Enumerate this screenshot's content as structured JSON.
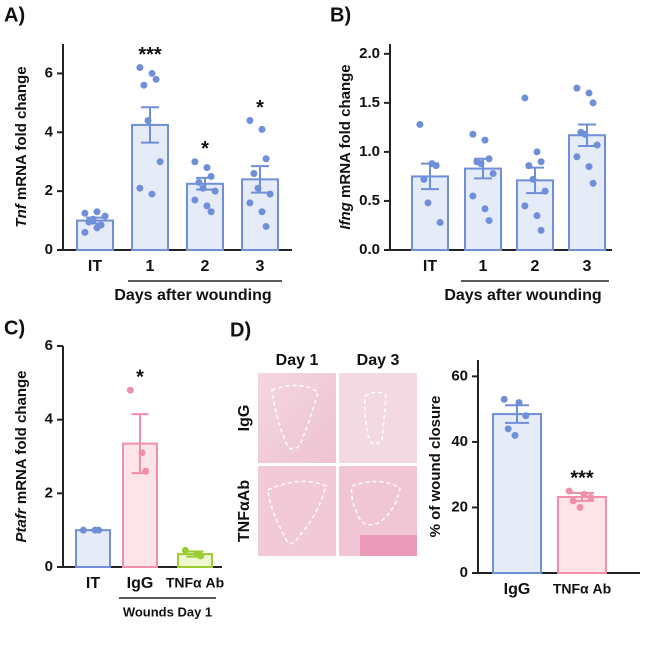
{
  "chart_data": [
    {
      "type": "bar",
      "panel_label": "A)",
      "ylabel_gene": "Tnf",
      "ylabel": "mRNA fold change",
      "categories": [
        "IT",
        "1",
        "2",
        "3"
      ],
      "values": [
        1.0,
        4.25,
        2.25,
        2.4
      ],
      "errors": [
        0.1,
        0.6,
        0.2,
        0.45
      ],
      "points": [
        [
          0.6,
          0.75,
          0.85,
          0.95,
          1.05,
          1.15,
          1.25,
          1.3
        ],
        [
          6.2,
          6.0,
          5.8,
          5.6,
          4.4,
          3.0,
          2.1,
          1.9
        ],
        [
          3.0,
          2.8,
          2.5,
          2.3,
          2.1,
          2.0,
          1.7,
          1.5,
          1.3
        ],
        [
          4.4,
          4.1,
          3.1,
          2.6,
          2.1,
          1.9,
          1.6,
          1.3,
          0.8
        ]
      ],
      "colors": [
        "#6f8fd8",
        "#6f8fd8",
        "#6f8fd8",
        "#6f8fd8"
      ],
      "annotations": [
        null,
        "***",
        "*",
        "*"
      ],
      "xlabel": "Days after wounding",
      "ylim": [
        0,
        7
      ],
      "yticks": [
        0,
        2,
        4,
        6
      ]
    },
    {
      "type": "bar",
      "panel_label": "B)",
      "ylabel_gene": "Ifng",
      "ylabel": "mRNA fold change",
      "categories": [
        "IT",
        "1",
        "2",
        "3"
      ],
      "values": [
        0.75,
        0.83,
        0.71,
        1.17
      ],
      "errors": [
        0.13,
        0.1,
        0.13,
        0.11
      ],
      "points": [
        [
          1.28,
          0.88,
          0.86,
          0.72,
          0.48,
          0.28
        ],
        [
          1.18,
          1.12,
          0.93,
          0.9,
          0.88,
          0.78,
          0.55,
          0.42,
          0.3
        ],
        [
          1.55,
          1.0,
          0.9,
          0.86,
          0.72,
          0.6,
          0.45,
          0.35,
          0.2
        ],
        [
          1.65,
          1.6,
          1.5,
          1.2,
          1.18,
          1.07,
          0.95,
          0.85,
          0.68
        ]
      ],
      "colors": [
        "#6f8fd8",
        "#6f8fd8",
        "#6f8fd8",
        "#6f8fd8"
      ],
      "xlabel": "Days after wounding",
      "ylim": [
        0,
        2.1
      ],
      "yticks": [
        {
          "value": 0,
          "label": "0.0"
        },
        0.5,
        {
          "value": 1,
          "label": "1.0"
        },
        1.5,
        {
          "value": 2,
          "label": "2.0"
        }
      ]
    },
    {
      "type": "bar",
      "panel_label": "C)",
      "ylabel_gene": "Ptafr",
      "ylabel": "mRNA fold change",
      "categories": [
        "IT",
        "IgG",
        "TNFα Ab"
      ],
      "values": [
        1.0,
        3.35,
        0.35
      ],
      "errors": [
        0,
        0.8,
        0.07
      ],
      "points": [
        [
          1.0,
          1.0,
          1.0
        ],
        [
          4.8,
          3.1,
          2.6
        ],
        [
          0.45,
          0.35,
          0.3
        ]
      ],
      "colors": [
        "#6f8fd8",
        "#f08fa8",
        "#9acd32"
      ],
      "annotations": [
        null,
        "*",
        null
      ],
      "xlabel": "Wounds Day 1",
      "ylim": [
        0,
        6
      ],
      "yticks": [
        0,
        2,
        4,
        6
      ]
    },
    {
      "type": "bar",
      "ylabel": "% of wound closure",
      "categories": [
        "IgG",
        "TNFα Ab"
      ],
      "values": [
        48.5,
        23.2
      ],
      "errors": [
        2.7,
        1.2
      ],
      "points": [
        [
          53,
          52,
          48,
          44,
          42
        ],
        [
          25,
          24,
          23,
          22,
          20
        ]
      ],
      "colors": [
        "#6f8fd8",
        "#f08fa8"
      ],
      "annotations": [
        null,
        "***"
      ],
      "ylim": [
        0,
        65
      ],
      "yticks": [
        0,
        20,
        40,
        60
      ]
    }
  ],
  "images": {
    "panel_label": "D)",
    "columns": [
      "Day 1",
      "Day 3"
    ],
    "rows": [
      "IgG",
      "TNFαAb"
    ]
  }
}
